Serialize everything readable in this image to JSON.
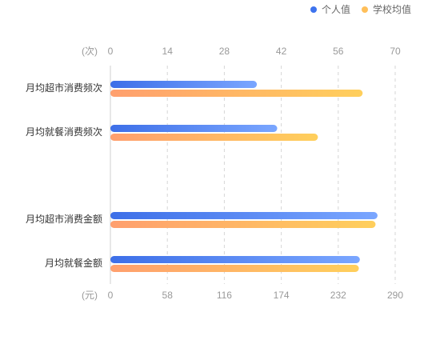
{
  "colors": {
    "individual": [
      "#3d6fe8",
      "#7aa6ff"
    ],
    "school": [
      "#ff9f6e",
      "#ffcf5c"
    ],
    "grid": "#d6d6d6",
    "axis_text": "#999999",
    "category_text": "#333333"
  },
  "chart_data": {
    "type": "bar",
    "orientation": "horizontal",
    "legend": {
      "placement": "top-right",
      "items": [
        {
          "name": "个人值",
          "color": "#3d73ee"
        },
        {
          "name": "学校均值",
          "color": "#ffbf5a"
        }
      ]
    },
    "grid": true,
    "groups": [
      {
        "unit_label": "(次)",
        "axis_position": "top",
        "xlim": [
          0,
          70
        ],
        "ticks": [
          "0",
          "14",
          "28",
          "42",
          "56",
          "70"
        ],
        "categories": [
          "月均超市消费频次",
          "月均就餐消费频次"
        ],
        "series": [
          {
            "name": "个人值",
            "values": [
              36,
              41
            ]
          },
          {
            "name": "学校均值",
            "values": [
              62,
              51
            ]
          }
        ]
      },
      {
        "unit_label": "(元)",
        "axis_position": "bottom",
        "xlim": [
          0,
          290
        ],
        "ticks": [
          "0",
          "58",
          "116",
          "174",
          "232",
          "290"
        ],
        "categories": [
          "月均超市消费金额",
          "月均就餐金额"
        ],
        "series": [
          {
            "name": "个人值",
            "values": [
              272,
              254
            ]
          },
          {
            "name": "学校均值",
            "values": [
              270,
              253
            ]
          }
        ]
      }
    ]
  }
}
